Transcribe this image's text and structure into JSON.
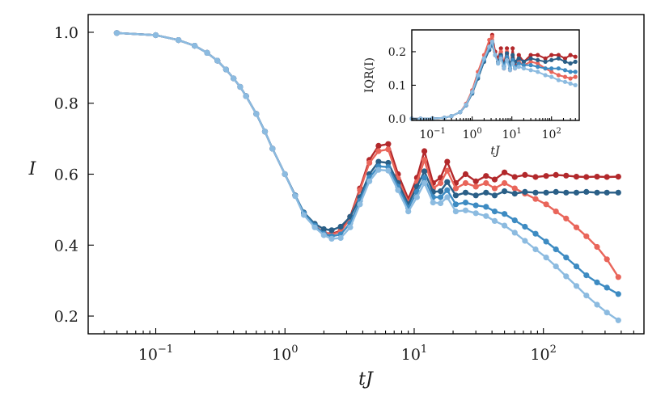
{
  "colors": {
    "s1": "#b2282b",
    "s2": "#e9655a",
    "s3": "#2a5f87",
    "s4": "#3d8bc2",
    "s5": "#8cbbe0"
  },
  "chart_data": [
    {
      "name": "main",
      "type": "line",
      "xscale": "log",
      "xlim": [
        0.03,
        600
      ],
      "ylim": [
        0.15,
        1.05
      ],
      "xlabel": "tJ",
      "ylabel": "I",
      "xticks": [
        0.1,
        1,
        10,
        100
      ],
      "xtick_labels": [
        {
          "base": "10",
          "exp": "−1"
        },
        {
          "base": "10",
          "exp": "0"
        },
        {
          "base": "10",
          "exp": "1"
        },
        {
          "base": "10",
          "exp": "2"
        }
      ],
      "yticks": [
        0.2,
        0.4,
        0.6,
        0.8,
        1.0
      ],
      "ytick_labels": [
        "0.2",
        "0.4",
        "0.6",
        "0.8",
        "1.0"
      ],
      "x": [
        0.05,
        0.1,
        0.15,
        0.2,
        0.25,
        0.3,
        0.35,
        0.4,
        0.45,
        0.5,
        0.6,
        0.7,
        0.8,
        1.0,
        1.2,
        1.4,
        1.7,
        2.0,
        2.3,
        2.7,
        3.2,
        3.8,
        4.5,
        5.3,
        6.3,
        7.5,
        9.0,
        10.5,
        12.0,
        14.0,
        16.0,
        18.0,
        21.0,
        25.0,
        30.0,
        36.0,
        42.0,
        50.0,
        60.0,
        72.0,
        87.0,
        105.0,
        125.0,
        150.0,
        180.0,
        215.0,
        260.0,
        310.0,
        380.0
      ],
      "series": [
        {
          "name": "series-1",
          "color_key": "s1",
          "values": [
            0.998,
            0.992,
            0.978,
            0.962,
            0.942,
            0.92,
            0.895,
            0.87,
            0.846,
            0.82,
            0.77,
            0.72,
            0.672,
            0.6,
            0.54,
            0.49,
            0.455,
            0.435,
            0.432,
            0.44,
            0.48,
            0.56,
            0.64,
            0.68,
            0.685,
            0.6,
            0.53,
            0.59,
            0.665,
            0.575,
            0.59,
            0.635,
            0.575,
            0.6,
            0.58,
            0.595,
            0.585,
            0.605,
            0.592,
            0.598,
            0.592,
            0.595,
            0.598,
            0.596,
            0.593,
            0.592,
            0.593,
            0.592,
            0.593
          ]
        },
        {
          "name": "series-2",
          "color_key": "s2",
          "values": [
            0.998,
            0.992,
            0.978,
            0.962,
            0.942,
            0.92,
            0.895,
            0.87,
            0.846,
            0.82,
            0.77,
            0.72,
            0.672,
            0.6,
            0.54,
            0.49,
            0.455,
            0.435,
            0.43,
            0.438,
            0.475,
            0.555,
            0.632,
            0.665,
            0.67,
            0.588,
            0.52,
            0.578,
            0.64,
            0.56,
            0.575,
            0.61,
            0.56,
            0.575,
            0.565,
            0.575,
            0.56,
            0.575,
            0.56,
            0.545,
            0.53,
            0.515,
            0.495,
            0.475,
            0.45,
            0.425,
            0.395,
            0.36,
            0.31
          ]
        },
        {
          "name": "series-3",
          "color_key": "s3",
          "values": [
            0.998,
            0.992,
            0.978,
            0.962,
            0.942,
            0.92,
            0.895,
            0.87,
            0.846,
            0.82,
            0.77,
            0.72,
            0.672,
            0.6,
            0.54,
            0.492,
            0.46,
            0.445,
            0.442,
            0.452,
            0.48,
            0.535,
            0.6,
            0.635,
            0.632,
            0.575,
            0.515,
            0.565,
            0.608,
            0.55,
            0.552,
            0.578,
            0.54,
            0.548,
            0.54,
            0.548,
            0.54,
            0.552,
            0.545,
            0.55,
            0.548,
            0.548,
            0.55,
            0.548,
            0.548,
            0.55,
            0.548,
            0.548,
            0.548
          ]
        },
        {
          "name": "series-4",
          "color_key": "s4",
          "values": [
            0.998,
            0.992,
            0.978,
            0.962,
            0.942,
            0.92,
            0.895,
            0.87,
            0.846,
            0.82,
            0.77,
            0.72,
            0.672,
            0.6,
            0.54,
            0.49,
            0.455,
            0.432,
            0.425,
            0.43,
            0.462,
            0.525,
            0.59,
            0.622,
            0.62,
            0.565,
            0.505,
            0.55,
            0.59,
            0.535,
            0.535,
            0.555,
            0.515,
            0.52,
            0.512,
            0.508,
            0.495,
            0.488,
            0.47,
            0.452,
            0.432,
            0.41,
            0.388,
            0.365,
            0.34,
            0.315,
            0.295,
            0.28,
            0.262
          ]
        },
        {
          "name": "series-5",
          "color_key": "s5",
          "values": [
            0.998,
            0.992,
            0.978,
            0.962,
            0.942,
            0.92,
            0.895,
            0.87,
            0.846,
            0.82,
            0.77,
            0.72,
            0.672,
            0.6,
            0.538,
            0.485,
            0.45,
            0.428,
            0.418,
            0.42,
            0.45,
            0.515,
            0.58,
            0.612,
            0.61,
            0.555,
            0.495,
            0.535,
            0.575,
            0.52,
            0.518,
            0.535,
            0.495,
            0.498,
            0.49,
            0.482,
            0.468,
            0.455,
            0.435,
            0.412,
            0.388,
            0.365,
            0.34,
            0.312,
            0.285,
            0.258,
            0.232,
            0.21,
            0.188
          ]
        }
      ]
    },
    {
      "name": "inset",
      "type": "line",
      "xscale": "log",
      "xlim": [
        0.03,
        500
      ],
      "ylim": [
        -0.005,
        0.265
      ],
      "xlabel": "tJ",
      "ylabel": "IQR(I)",
      "xticks": [
        0.1,
        1,
        10,
        100
      ],
      "xtick_labels": [
        {
          "base": "10",
          "exp": "−1"
        },
        {
          "base": "10",
          "exp": "0"
        },
        {
          "base": "10",
          "exp": "1"
        },
        {
          "base": "10",
          "exp": "2"
        }
      ],
      "yticks": [
        0.0,
        0.1,
        0.2
      ],
      "ytick_labels": [
        "0.0",
        "0.1",
        "0.2"
      ],
      "x": [
        0.03,
        0.05,
        0.1,
        0.2,
        0.3,
        0.5,
        0.7,
        1.0,
        1.4,
        2.0,
        2.7,
        3.2,
        3.8,
        4.5,
        5.3,
        6.3,
        7.5,
        9.0,
        10.5,
        12.0,
        15.0,
        20.0,
        30.0,
        45.0,
        70.0,
        100.0,
        150.0,
        220.0,
        300.0,
        400.0
      ],
      "series": [
        {
          "name": "inset-series-1",
          "color_key": "s1",
          "values": [
            0.0,
            0.0,
            0.001,
            0.003,
            0.008,
            0.02,
            0.04,
            0.08,
            0.13,
            0.18,
            0.22,
            0.25,
            0.2,
            0.18,
            0.21,
            0.16,
            0.21,
            0.15,
            0.21,
            0.16,
            0.19,
            0.17,
            0.19,
            0.19,
            0.18,
            0.19,
            0.19,
            0.18,
            0.19,
            0.185
          ]
        },
        {
          "name": "inset-series-2",
          "color_key": "s2",
          "values": [
            0.0,
            0.0,
            0.001,
            0.003,
            0.008,
            0.02,
            0.045,
            0.085,
            0.14,
            0.19,
            0.235,
            0.245,
            0.19,
            0.17,
            0.2,
            0.15,
            0.2,
            0.145,
            0.18,
            0.15,
            0.17,
            0.16,
            0.17,
            0.165,
            0.15,
            0.14,
            0.13,
            0.125,
            0.12,
            0.125
          ]
        },
        {
          "name": "inset-series-3",
          "color_key": "s3",
          "values": [
            0.0,
            0.0,
            0.001,
            0.003,
            0.008,
            0.02,
            0.04,
            0.075,
            0.12,
            0.17,
            0.205,
            0.22,
            0.19,
            0.17,
            0.19,
            0.16,
            0.195,
            0.16,
            0.19,
            0.17,
            0.18,
            0.17,
            0.18,
            0.175,
            0.17,
            0.175,
            0.18,
            0.17,
            0.165,
            0.17
          ]
        },
        {
          "name": "inset-series-4",
          "color_key": "s4",
          "values": [
            0.0,
            0.0,
            0.001,
            0.003,
            0.008,
            0.02,
            0.04,
            0.078,
            0.125,
            0.175,
            0.21,
            0.225,
            0.19,
            0.165,
            0.185,
            0.155,
            0.185,
            0.15,
            0.175,
            0.155,
            0.165,
            0.16,
            0.16,
            0.155,
            0.15,
            0.15,
            0.15,
            0.145,
            0.14,
            0.14
          ]
        },
        {
          "name": "inset-series-5",
          "color_key": "s5",
          "values": [
            0.0,
            0.0,
            0.001,
            0.003,
            0.008,
            0.02,
            0.042,
            0.08,
            0.13,
            0.18,
            0.215,
            0.23,
            0.19,
            0.165,
            0.18,
            0.15,
            0.175,
            0.145,
            0.165,
            0.15,
            0.155,
            0.15,
            0.145,
            0.14,
            0.13,
            0.125,
            0.115,
            0.11,
            0.105,
            0.1
          ]
        }
      ]
    }
  ]
}
